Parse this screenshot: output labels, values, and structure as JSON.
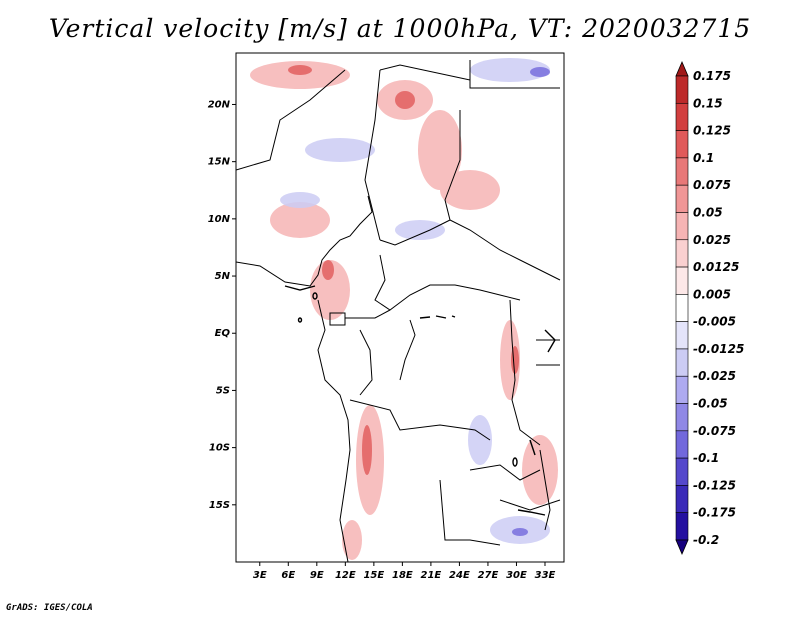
{
  "title": "Vertical velocity [m/s] at 1000hPa, VT: 2020032715",
  "credit": "GrADS: IGES/COLA",
  "map": {
    "lat_labels": [
      "20N",
      "15N",
      "10N",
      "5N",
      "EQ",
      "5S",
      "10S",
      "15S"
    ],
    "lat_values": [
      20,
      15,
      10,
      5,
      0,
      -5,
      -10,
      -15
    ],
    "lon_labels": [
      "3E",
      "6E",
      "9E",
      "12E",
      "15E",
      "18E",
      "21E",
      "24E",
      "27E",
      "30E",
      "33E"
    ],
    "lon_values": [
      3,
      6,
      9,
      12,
      15,
      18,
      21,
      24,
      27,
      30,
      33
    ],
    "lon_range": [
      0.5,
      35
    ],
    "lat_range": [
      -20,
      24.5
    ]
  },
  "colorbar": {
    "labels": [
      "0.175",
      "0.15",
      "0.125",
      "0.1",
      "0.075",
      "0.05",
      "0.025",
      "0.0125",
      "0.005",
      "-0.005",
      "-0.0125",
      "-0.025",
      "-0.05",
      "-0.075",
      "-0.1",
      "-0.125",
      "-0.175",
      "-0.2"
    ],
    "colors": [
      "#a01818",
      "#bd2a2a",
      "#d23f3f",
      "#e05a5a",
      "#e87878",
      "#f09696",
      "#f6b4b4",
      "#fad0d0",
      "#fde8e8",
      "#ffffff",
      "#e4e4fa",
      "#ccccf4",
      "#aeaaf0",
      "#9088e6",
      "#7268dc",
      "#5548cc",
      "#3a2ab8",
      "#2410a0",
      "#16007e"
    ]
  }
}
